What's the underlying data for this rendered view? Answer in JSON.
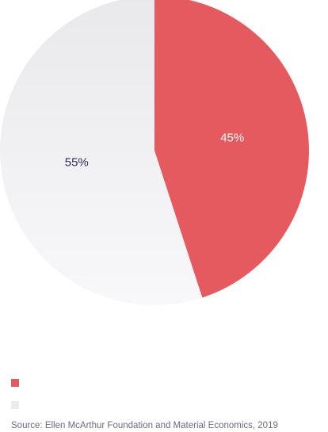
{
  "chart_data": {
    "type": "pie",
    "slices": [
      {
        "value": 45,
        "label": "45%",
        "color": "#e55a5e",
        "label_color": "#ffffff"
      },
      {
        "value": 55,
        "label": "55%",
        "color": "#ebebee",
        "label_color": "#2d2b57"
      }
    ],
    "legend": [
      {
        "color": "#e55a5e",
        "label": ""
      },
      {
        "color": "#ebebee",
        "label": ""
      }
    ],
    "source": "Source: Ellen McArthur Foundation and Material Economics, 2019"
  }
}
